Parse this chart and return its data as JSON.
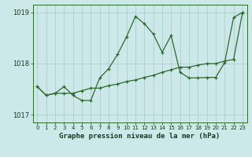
{
  "line1_x": [
    0,
    1,
    2,
    3,
    4,
    5,
    6,
    7,
    8,
    9,
    10,
    11,
    12,
    13,
    14,
    15,
    16,
    17,
    18,
    19,
    20,
    21,
    22,
    23
  ],
  "line1_y": [
    1017.55,
    1017.38,
    1017.42,
    1017.55,
    1017.38,
    1017.28,
    1017.28,
    1017.72,
    1017.9,
    1018.18,
    1018.52,
    1018.92,
    1018.78,
    1018.58,
    1018.22,
    1018.55,
    1017.83,
    1017.72,
    1017.72,
    1017.73,
    1017.73,
    1018.02,
    1018.9,
    1019.0
  ],
  "line2_x": [
    0,
    1,
    2,
    3,
    4,
    5,
    6,
    7,
    8,
    9,
    10,
    11,
    12,
    13,
    14,
    15,
    16,
    17,
    18,
    19,
    20,
    21,
    22,
    23
  ],
  "line2_y": [
    1017.55,
    1017.38,
    1017.42,
    1017.42,
    1017.42,
    1017.47,
    1017.52,
    1017.52,
    1017.57,
    1017.6,
    1017.65,
    1017.68,
    1017.73,
    1017.77,
    1017.83,
    1017.88,
    1017.93,
    1017.93,
    1017.97,
    1018.0,
    1018.0,
    1018.05,
    1018.08,
    1019.0
  ],
  "line_color": "#2d6a2d",
  "bg_color": "#cce8e8",
  "grid_color": "#a8caca",
  "xlabel": "Graphe pression niveau de la mer (hPa)",
  "ylim": [
    1016.85,
    1019.15
  ],
  "xlim": [
    -0.5,
    23.5
  ],
  "yticks": [
    1017,
    1018,
    1019
  ],
  "xticks": [
    0,
    1,
    2,
    3,
    4,
    5,
    6,
    7,
    8,
    9,
    10,
    11,
    12,
    13,
    14,
    15,
    16,
    17,
    18,
    19,
    20,
    21,
    22,
    23
  ]
}
